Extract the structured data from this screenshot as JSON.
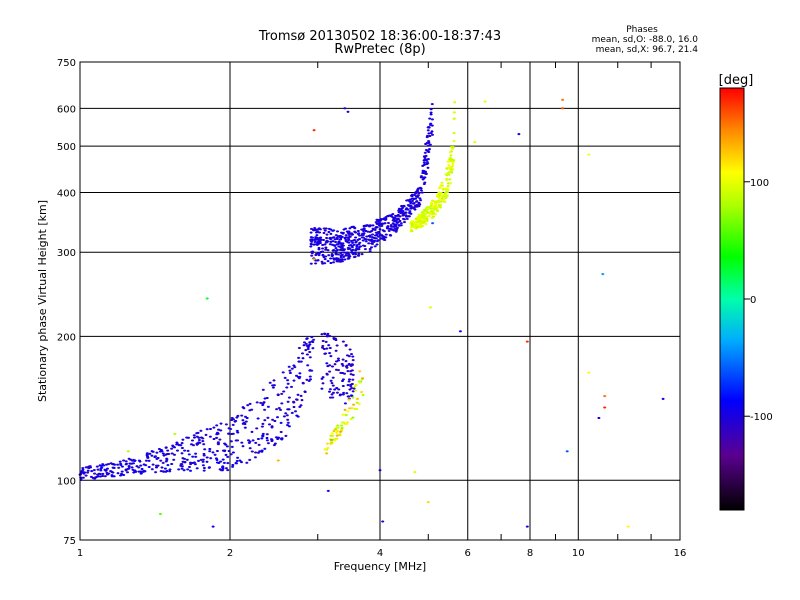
{
  "chart_data": {
    "type": "scatter",
    "title": "Tromsø 20130502 18:36:00-18:37:43",
    "subtitle": "RwPretec (8p)",
    "stats": {
      "heading": "Phases",
      "line1": "mean, sd,O: -88.0, 16.0",
      "line2": "mean, sd,X:  96.7, 21.4"
    },
    "xlabel": "Frequency [MHz]",
    "ylabel": "Stationary phase Virtual Height [km]",
    "x_scale": "log",
    "y_scale": "log",
    "xlim": [
      1,
      16
    ],
    "ylim": [
      75,
      750
    ],
    "x_ticks": [
      1,
      2,
      4,
      6,
      8,
      10,
      16
    ],
    "x_tick_labels": [
      "1",
      "2",
      "4",
      "6",
      "8",
      "10",
      "16"
    ],
    "y_ticks": [
      75,
      100,
      200,
      300,
      400,
      500,
      600,
      750
    ],
    "y_tick_labels": [
      "75",
      "100",
      "200",
      "300",
      "400",
      "500",
      "600",
      "750"
    ],
    "grid": true,
    "colorbar": {
      "label": "[deg]",
      "range": [
        -180,
        180
      ],
      "ticks": [
        100,
        0,
        -100
      ],
      "tick_labels": [
        "100",
        "0",
        "-100"
      ]
    },
    "traces": [
      {
        "ptype": "band",
        "lo": [
          [
            1.0,
            100
          ],
          [
            1.3,
            103
          ],
          [
            1.6,
            104
          ],
          [
            2.0,
            105
          ],
          [
            2.4,
            112
          ],
          [
            2.7,
            130
          ],
          [
            2.85,
            150
          ],
          [
            2.95,
            175
          ]
        ],
        "hi": [
          [
            1.0,
            106
          ],
          [
            1.3,
            112
          ],
          [
            1.6,
            122
          ],
          [
            2.0,
            135
          ],
          [
            2.4,
            160
          ],
          [
            2.7,
            185
          ],
          [
            2.85,
            200
          ],
          [
            2.95,
            205
          ]
        ],
        "count": 520,
        "phase": -100,
        "phase_sd": 10
      },
      {
        "ptype": "band",
        "lo": [
          [
            3.05,
            150
          ],
          [
            3.3,
            142
          ],
          [
            3.55,
            148
          ]
        ],
        "hi": [
          [
            3.05,
            205
          ],
          [
            3.3,
            200
          ],
          [
            3.55,
            190
          ]
        ],
        "count": 110,
        "phase": -105,
        "phase_sd": 10
      },
      {
        "ptype": "band",
        "lo": [
          [
            3.1,
            112
          ],
          [
            3.4,
            128
          ],
          [
            3.7,
            145
          ]
        ],
        "hi": [
          [
            3.1,
            118
          ],
          [
            3.4,
            140
          ],
          [
            3.7,
            180
          ]
        ],
        "count": 70,
        "phase": 100,
        "phase_sd": 25
      },
      {
        "ptype": "band",
        "lo": [
          [
            2.9,
            283
          ],
          [
            3.3,
            285
          ],
          [
            3.8,
            300
          ],
          [
            4.3,
            330
          ],
          [
            4.8,
            375
          ],
          [
            5.0,
            450
          ],
          [
            5.1,
            500
          ]
        ],
        "hi": [
          [
            2.9,
            340
          ],
          [
            3.3,
            335
          ],
          [
            3.8,
            345
          ],
          [
            4.3,
            365
          ],
          [
            4.8,
            410
          ],
          [
            5.0,
            560
          ],
          [
            5.15,
            650
          ]
        ],
        "count": 620,
        "phase": -100,
        "phase_sd": 8
      },
      {
        "ptype": "band",
        "lo": [
          [
            4.6,
            330
          ],
          [
            5.0,
            345
          ],
          [
            5.4,
            380
          ],
          [
            5.6,
            430
          ],
          [
            5.65,
            500
          ]
        ],
        "hi": [
          [
            4.6,
            345
          ],
          [
            5.0,
            375
          ],
          [
            5.4,
            430
          ],
          [
            5.6,
            520
          ],
          [
            5.65,
            650
          ]
        ],
        "count": 260,
        "phase": 95,
        "phase_sd": 12
      },
      {
        "ptype": "pts",
        "pts": [
          [
            1.8,
            240,
            25
          ],
          [
            1.85,
            80,
            -95
          ],
          [
            1.45,
            85,
            60
          ],
          [
            1.25,
            115,
            80
          ],
          [
            1.55,
            125,
            85
          ],
          [
            2.5,
            110,
            130
          ],
          [
            3.15,
            95,
            -100
          ],
          [
            3.4,
            600,
            -105
          ],
          [
            3.45,
            590,
            -100
          ],
          [
            4.0,
            105,
            -100
          ],
          [
            4.05,
            82,
            -105
          ],
          [
            4.7,
            104,
            95
          ],
          [
            5.0,
            90,
            120
          ],
          [
            5.05,
            230,
            95
          ],
          [
            5.8,
            205,
            -100
          ],
          [
            6.5,
            620,
            100
          ],
          [
            6.2,
            510,
            100
          ],
          [
            7.6,
            530,
            -90
          ],
          [
            7.9,
            195,
            170
          ],
          [
            7.9,
            80,
            -100
          ],
          [
            9.3,
            625,
            150
          ],
          [
            9.3,
            600,
            160
          ],
          [
            10.5,
            480,
            105
          ],
          [
            10.5,
            168,
            110
          ],
          [
            11.2,
            270,
            -40
          ],
          [
            11.3,
            150,
            150
          ],
          [
            11.3,
            142,
            170
          ],
          [
            11.0,
            135,
            -95
          ],
          [
            9.5,
            115,
            -60
          ],
          [
            12.6,
            80,
            110
          ],
          [
            14.8,
            148,
            -100
          ],
          [
            2.95,
            540,
            170
          ],
          [
            2.95,
            290,
            130
          ],
          [
            5.1,
            345,
            -60
          ]
        ]
      }
    ]
  }
}
